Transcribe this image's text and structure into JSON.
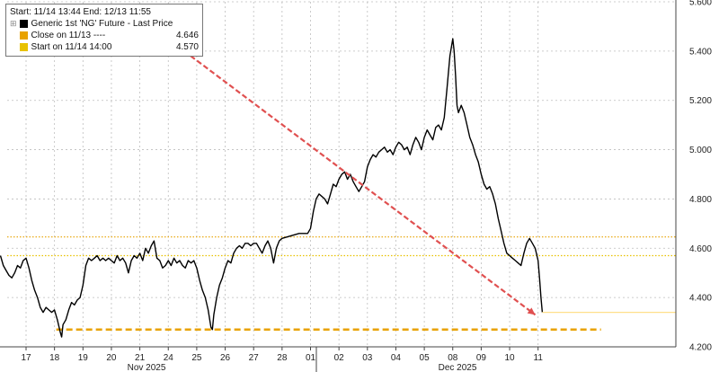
{
  "legend": {
    "header": "Start: 11/14 13:44 End: 12/13 11:55",
    "series_label": "Generic 1st 'NG' Future - Last Price",
    "close_label": "Close on 11/13 ----",
    "close_value": "4.646",
    "start_label": "Start on 11/14 14:00",
    "start_value": "4.570"
  },
  "colors": {
    "series": "#000000",
    "close_line": "#e8a200",
    "start_line": "#e8c200",
    "support_line": "#e8a200",
    "trend_arrow": "#e05050",
    "grid": "#bdbdbd"
  },
  "chart_data": {
    "type": "line",
    "ylim": [
      4.2,
      5.6
    ],
    "yticks": [
      "4.200",
      "4.400",
      "4.600",
      "4.800",
      "5.000",
      "5.200",
      "5.400",
      "5.600"
    ],
    "day_labels": [
      "17",
      "18",
      "19",
      "20",
      "21",
      "24",
      "25",
      "26",
      "27",
      "28",
      "01",
      "02",
      "03",
      "04",
      "05",
      "08",
      "09",
      "10",
      "11"
    ],
    "month_labels": [
      "Nov 2025",
      "Dec 2025"
    ],
    "reference_lines": [
      {
        "name": "Close on 11/13",
        "value": 4.646
      },
      {
        "name": "Start on 11/14 14:00",
        "value": 4.57
      }
    ],
    "support_line": {
      "value": 4.27,
      "from_day": "18",
      "to_day": "11"
    },
    "last_price_line": 4.34,
    "trend_arrow": {
      "from": {
        "day": 5.1,
        "value": 5.44
      },
      "to": {
        "day": 17.9,
        "value": 4.33
      }
    },
    "series": [
      {
        "name": "Generic 1st 'NG' Future - Last Price",
        "points": [
          [
            -0.9,
            4.57
          ],
          [
            -0.8,
            4.53
          ],
          [
            -0.7,
            4.51
          ],
          [
            -0.6,
            4.49
          ],
          [
            -0.5,
            4.48
          ],
          [
            -0.4,
            4.5
          ],
          [
            -0.3,
            4.53
          ],
          [
            -0.2,
            4.52
          ],
          [
            -0.1,
            4.55
          ],
          [
            0.0,
            4.56
          ],
          [
            0.1,
            4.52
          ],
          [
            0.2,
            4.47
          ],
          [
            0.3,
            4.43
          ],
          [
            0.4,
            4.4
          ],
          [
            0.5,
            4.36
          ],
          [
            0.6,
            4.34
          ],
          [
            0.7,
            4.36
          ],
          [
            0.8,
            4.35
          ],
          [
            0.9,
            4.34
          ],
          [
            1.0,
            4.35
          ],
          [
            1.1,
            4.31
          ],
          [
            1.2,
            4.26
          ],
          [
            1.25,
            4.24
          ],
          [
            1.3,
            4.29
          ],
          [
            1.4,
            4.31
          ],
          [
            1.5,
            4.35
          ],
          [
            1.6,
            4.38
          ],
          [
            1.7,
            4.37
          ],
          [
            1.8,
            4.39
          ],
          [
            1.9,
            4.4
          ],
          [
            2.0,
            4.45
          ],
          [
            2.1,
            4.53
          ],
          [
            2.2,
            4.56
          ],
          [
            2.3,
            4.55
          ],
          [
            2.4,
            4.56
          ],
          [
            2.5,
            4.57
          ],
          [
            2.6,
            4.55
          ],
          [
            2.7,
            4.56
          ],
          [
            2.8,
            4.55
          ],
          [
            2.9,
            4.56
          ],
          [
            3.0,
            4.55
          ],
          [
            3.1,
            4.54
          ],
          [
            3.2,
            4.57
          ],
          [
            3.3,
            4.55
          ],
          [
            3.4,
            4.56
          ],
          [
            3.5,
            4.54
          ],
          [
            3.6,
            4.5
          ],
          [
            3.7,
            4.55
          ],
          [
            3.8,
            4.57
          ],
          [
            3.9,
            4.56
          ],
          [
            4.0,
            4.58
          ],
          [
            4.1,
            4.55
          ],
          [
            4.2,
            4.6
          ],
          [
            4.3,
            4.58
          ],
          [
            4.4,
            4.61
          ],
          [
            4.5,
            4.63
          ],
          [
            4.6,
            4.56
          ],
          [
            4.7,
            4.55
          ],
          [
            4.8,
            4.52
          ],
          [
            4.9,
            4.53
          ],
          [
            5.0,
            4.55
          ],
          [
            5.1,
            4.53
          ],
          [
            5.2,
            4.56
          ],
          [
            5.3,
            4.54
          ],
          [
            5.4,
            4.55
          ],
          [
            5.5,
            4.53
          ],
          [
            5.6,
            4.52
          ],
          [
            5.7,
            4.55
          ],
          [
            5.8,
            4.54
          ],
          [
            5.9,
            4.55
          ],
          [
            6.0,
            4.52
          ],
          [
            6.1,
            4.47
          ],
          [
            6.2,
            4.43
          ],
          [
            6.3,
            4.4
          ],
          [
            6.4,
            4.35
          ],
          [
            6.5,
            4.28
          ],
          [
            6.55,
            4.27
          ],
          [
            6.6,
            4.33
          ],
          [
            6.7,
            4.4
          ],
          [
            6.8,
            4.45
          ],
          [
            6.9,
            4.48
          ],
          [
            7.0,
            4.52
          ],
          [
            7.1,
            4.55
          ],
          [
            7.2,
            4.54
          ],
          [
            7.3,
            4.58
          ],
          [
            7.4,
            4.6
          ],
          [
            7.5,
            4.61
          ],
          [
            7.6,
            4.6
          ],
          [
            7.7,
            4.62
          ],
          [
            7.8,
            4.62
          ],
          [
            7.9,
            4.61
          ],
          [
            8.0,
            4.62
          ],
          [
            8.1,
            4.62
          ],
          [
            8.2,
            4.6
          ],
          [
            8.3,
            4.58
          ],
          [
            8.4,
            4.61
          ],
          [
            8.5,
            4.63
          ],
          [
            8.6,
            4.6
          ],
          [
            8.7,
            4.54
          ],
          [
            8.8,
            4.6
          ],
          [
            8.9,
            4.63
          ],
          [
            9.0,
            4.64
          ],
          [
            9.3,
            4.65
          ],
          [
            9.6,
            4.66
          ],
          [
            9.9,
            4.66
          ],
          [
            10.0,
            4.68
          ],
          [
            10.1,
            4.75
          ],
          [
            10.2,
            4.8
          ],
          [
            10.3,
            4.82
          ],
          [
            10.4,
            4.81
          ],
          [
            10.5,
            4.8
          ],
          [
            10.6,
            4.78
          ],
          [
            10.7,
            4.82
          ],
          [
            10.8,
            4.86
          ],
          [
            10.9,
            4.85
          ],
          [
            11.0,
            4.88
          ],
          [
            11.1,
            4.9
          ],
          [
            11.2,
            4.91
          ],
          [
            11.3,
            4.88
          ],
          [
            11.4,
            4.9
          ],
          [
            11.5,
            4.87
          ],
          [
            11.6,
            4.85
          ],
          [
            11.7,
            4.83
          ],
          [
            11.8,
            4.85
          ],
          [
            11.9,
            4.87
          ],
          [
            12.0,
            4.93
          ],
          [
            12.1,
            4.96
          ],
          [
            12.2,
            4.98
          ],
          [
            12.3,
            4.97
          ],
          [
            12.4,
            4.99
          ],
          [
            12.5,
            5.0
          ],
          [
            12.6,
            5.01
          ],
          [
            12.7,
            4.99
          ],
          [
            12.8,
            5.0
          ],
          [
            12.9,
            4.98
          ],
          [
            13.0,
            5.01
          ],
          [
            13.1,
            5.03
          ],
          [
            13.2,
            5.02
          ],
          [
            13.3,
            5.0
          ],
          [
            13.4,
            5.01
          ],
          [
            13.5,
            4.98
          ],
          [
            13.6,
            5.02
          ],
          [
            13.7,
            5.05
          ],
          [
            13.8,
            5.03
          ],
          [
            13.9,
            5.0
          ],
          [
            14.0,
            5.05
          ],
          [
            14.1,
            5.08
          ],
          [
            14.2,
            5.06
          ],
          [
            14.3,
            5.04
          ],
          [
            14.4,
            5.09
          ],
          [
            14.5,
            5.1
          ],
          [
            14.6,
            5.08
          ],
          [
            14.7,
            5.13
          ],
          [
            14.8,
            5.25
          ],
          [
            14.9,
            5.38
          ],
          [
            15.0,
            5.45
          ],
          [
            15.05,
            5.4
          ],
          [
            15.1,
            5.3
          ],
          [
            15.15,
            5.18
          ],
          [
            15.2,
            5.15
          ],
          [
            15.3,
            5.18
          ],
          [
            15.4,
            5.15
          ],
          [
            15.5,
            5.1
          ],
          [
            15.6,
            5.05
          ],
          [
            15.7,
            5.02
          ],
          [
            15.8,
            4.98
          ],
          [
            15.9,
            4.95
          ],
          [
            16.0,
            4.9
          ],
          [
            16.1,
            4.86
          ],
          [
            16.2,
            4.84
          ],
          [
            16.3,
            4.85
          ],
          [
            16.4,
            4.82
          ],
          [
            16.5,
            4.78
          ],
          [
            16.6,
            4.72
          ],
          [
            16.7,
            4.67
          ],
          [
            16.8,
            4.62
          ],
          [
            16.9,
            4.58
          ],
          [
            17.0,
            4.57
          ],
          [
            17.1,
            4.56
          ],
          [
            17.2,
            4.55
          ],
          [
            17.3,
            4.54
          ],
          [
            17.4,
            4.53
          ],
          [
            17.5,
            4.58
          ],
          [
            17.6,
            4.62
          ],
          [
            17.7,
            4.64
          ],
          [
            17.8,
            4.62
          ],
          [
            17.9,
            4.6
          ],
          [
            18.0,
            4.55
          ],
          [
            18.05,
            4.48
          ],
          [
            18.1,
            4.4
          ],
          [
            18.15,
            4.34
          ]
        ]
      }
    ]
  }
}
